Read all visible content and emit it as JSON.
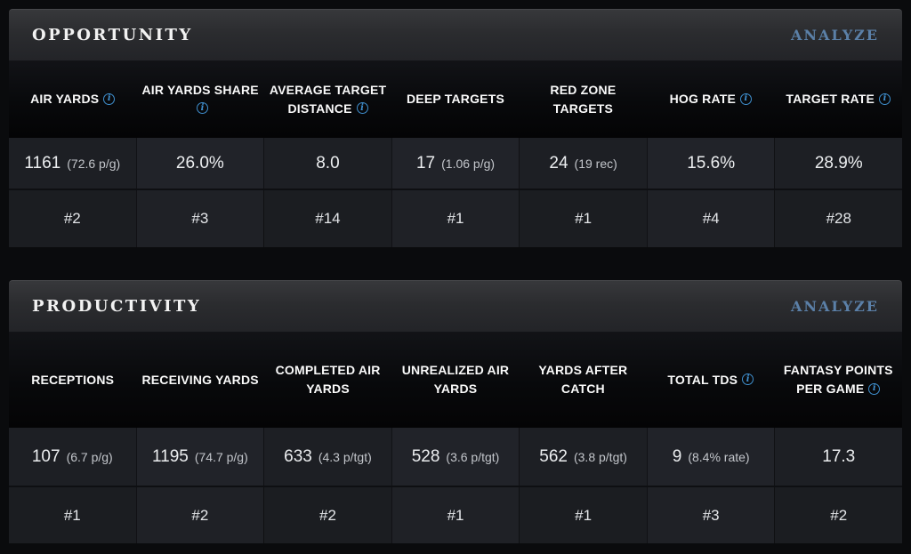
{
  "colors": {
    "analyze_link": "#5b80a8",
    "info_icon": "#3f8fce",
    "page_background": "#0a0b0d",
    "header_text": "#fafafa"
  },
  "sections": [
    {
      "title": "OPPORTUNITY",
      "analyze_label": "ANALYZE",
      "columns": [
        {
          "label": "AIR YARDS",
          "info": true,
          "value": "1161",
          "note": "(72.6 p/g)",
          "rank": "#2"
        },
        {
          "label": "AIR YARDS SHARE",
          "info": true,
          "value": "26.0%",
          "note": "",
          "rank": "#3"
        },
        {
          "label": "AVERAGE TARGET DISTANCE",
          "info": true,
          "value": "8.0",
          "note": "",
          "rank": "#14"
        },
        {
          "label": "DEEP TARGETS",
          "info": false,
          "value": "17",
          "note": "(1.06 p/g)",
          "rank": "#1"
        },
        {
          "label": "RED ZONE TARGETS",
          "info": false,
          "value": "24",
          "note": "(19 rec)",
          "rank": "#1"
        },
        {
          "label": "HOG RATE",
          "info": true,
          "value": "15.6%",
          "note": "",
          "rank": "#4"
        },
        {
          "label": "TARGET RATE",
          "info": true,
          "value": "28.9%",
          "note": "",
          "rank": "#28"
        }
      ]
    },
    {
      "title": "PRODUCTIVITY",
      "analyze_label": "ANALYZE",
      "columns": [
        {
          "label": "RECEPTIONS",
          "info": false,
          "value": "107",
          "note": "(6.7 p/g)",
          "rank": "#1"
        },
        {
          "label": "RECEIVING YARDS",
          "info": false,
          "value": "1195",
          "note": "(74.7 p/g)",
          "rank": "#2"
        },
        {
          "label": "COMPLETED AIR YARDS",
          "info": false,
          "value": "633",
          "note": "(4.3 p/tgt)",
          "rank": "#2"
        },
        {
          "label": "UNREALIZED AIR YARDS",
          "info": false,
          "value": "528",
          "note": "(3.6 p/tgt)",
          "rank": "#1"
        },
        {
          "label": "YARDS AFTER CATCH",
          "info": false,
          "value": "562",
          "note": "(3.8 p/tgt)",
          "rank": "#1"
        },
        {
          "label": "TOTAL TDS",
          "info": true,
          "value": "9",
          "note": "(8.4% rate)",
          "rank": "#3"
        },
        {
          "label": "FANTASY POINTS PER GAME",
          "info": true,
          "value": "17.3",
          "note": "",
          "rank": "#2"
        }
      ]
    }
  ]
}
